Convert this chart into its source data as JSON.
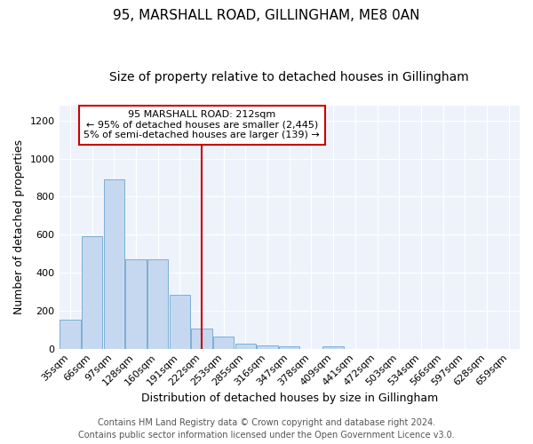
{
  "title1": "95, MARSHALL ROAD, GILLINGHAM, ME8 0AN",
  "title2": "Size of property relative to detached houses in Gillingham",
  "xlabel": "Distribution of detached houses by size in Gillingham",
  "ylabel": "Number of detached properties",
  "bar_labels": [
    "35sqm",
    "66sqm",
    "97sqm",
    "128sqm",
    "160sqm",
    "191sqm",
    "222sqm",
    "253sqm",
    "285sqm",
    "316sqm",
    "347sqm",
    "378sqm",
    "409sqm",
    "441sqm",
    "472sqm",
    "503sqm",
    "534sqm",
    "566sqm",
    "597sqm",
    "628sqm",
    "659sqm"
  ],
  "bar_values": [
    152,
    590,
    890,
    470,
    470,
    285,
    105,
    63,
    28,
    18,
    13,
    0,
    10,
    0,
    0,
    0,
    0,
    0,
    0,
    0,
    0
  ],
  "bar_color": "#c5d8f0",
  "bar_edge_color": "#7bafd4",
  "vline_x": 6,
  "vline_color": "#cc0000",
  "annotation_line1": "95 MARSHALL ROAD: 212sqm",
  "annotation_line2": "← 95% of detached houses are smaller (2,445)",
  "annotation_line3": "5% of semi-detached houses are larger (139) →",
  "annotation_box_color": "#ffffff",
  "annotation_box_edge": "#cc0000",
  "ylim": [
    0,
    1280
  ],
  "yticks": [
    0,
    200,
    400,
    600,
    800,
    1000,
    1200
  ],
  "bg_color": "#eef3fb",
  "footer1": "Contains HM Land Registry data © Crown copyright and database right 2024.",
  "footer2": "Contains public sector information licensed under the Open Government Licence v3.0.",
  "title1_fontsize": 11,
  "title2_fontsize": 10,
  "xlabel_fontsize": 9,
  "ylabel_fontsize": 9,
  "tick_fontsize": 8,
  "annotation_fontsize": 8,
  "footer_fontsize": 7
}
